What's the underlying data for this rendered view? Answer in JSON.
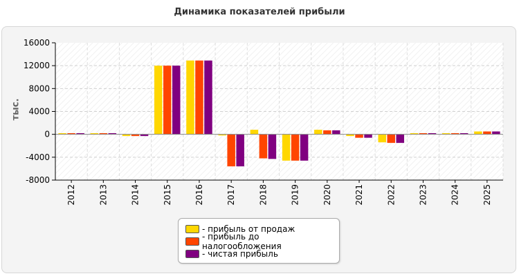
{
  "chart_data": {
    "type": "bar",
    "title": "Динамика показателей прибыли",
    "ylabel": "тыс.",
    "xlabel": "",
    "ylim": [
      -8000,
      16000
    ],
    "yticks": [
      16000,
      12000,
      8000,
      4000,
      0,
      -4000,
      -8000
    ],
    "categories": [
      "2012",
      "2013",
      "2014",
      "2015",
      "2016",
      "2017",
      "2018",
      "2019",
      "2020",
      "2021",
      "2022",
      "2023",
      "2024",
      "2025"
    ],
    "series": [
      {
        "name": "- прибыль от продаж",
        "color": "#FFD700",
        "values": [
          200,
          200,
          -300,
          12000,
          12900,
          -200,
          800,
          -4600,
          800,
          -300,
          -1400,
          200,
          200,
          500
        ]
      },
      {
        "name": "- прибыль до налогообложения",
        "color": "#FF4500",
        "values": [
          200,
          200,
          -300,
          12000,
          12900,
          -5600,
          -4200,
          -4600,
          700,
          -600,
          -1500,
          200,
          200,
          500
        ]
      },
      {
        "name": "- чистая прибыль",
        "color": "#800080",
        "values": [
          200,
          200,
          -300,
          12000,
          12900,
          -5600,
          -4300,
          -4600,
          700,
          -600,
          -1500,
          200,
          200,
          500
        ]
      }
    ],
    "grid": true,
    "legend_position": "bottom-center"
  }
}
